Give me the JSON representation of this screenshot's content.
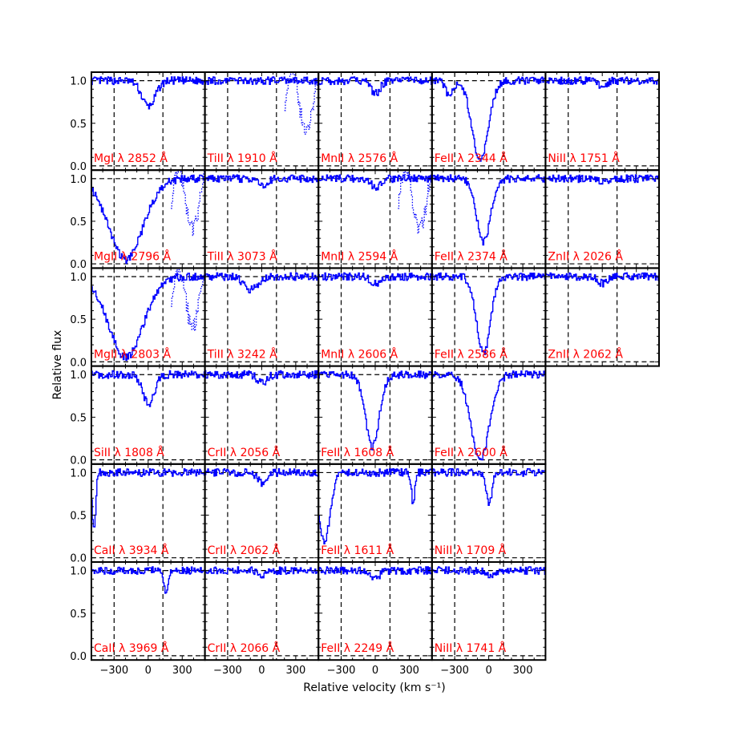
{
  "figure": {
    "ylabel": "Relative flux",
    "xlabel": "Relative velocity (km s⁻¹)"
  },
  "chart_data": {
    "type": "line",
    "xlim": [
      -500,
      500
    ],
    "ylim": [
      -0.05,
      1.1
    ],
    "x_ticks": [
      -300,
      0,
      300
    ],
    "x_tick_labels": [
      "−300",
      "0",
      "300"
    ],
    "y_ticks": [
      0.0,
      0.5,
      1.0
    ],
    "y_tick_labels": [
      "0.0",
      "0.5",
      "1.0"
    ],
    "velocity_marks": [
      -300,
      130
    ],
    "continuum_level": 1.0,
    "zero_level": 0.0,
    "colors": {
      "flux": "#0000ff",
      "label": "#ff0000",
      "guide": "#000000"
    },
    "panels": [
      {
        "row": 0,
        "col": 0,
        "label": "MgI λ 2852 Å",
        "abs": [
          {
            "v": 0,
            "w": 60,
            "d": 0.3
          }
        ]
      },
      {
        "row": 0,
        "col": 1,
        "label": "TiII λ 1910 Å",
        "abs": [],
        "blend": true
      },
      {
        "row": 0,
        "col": 2,
        "label": "MnII λ 2576 Å",
        "abs": [
          {
            "v": 0,
            "w": 40,
            "d": 0.15
          }
        ]
      },
      {
        "row": 0,
        "col": 3,
        "label": "FeII λ 2344 Å",
        "abs": [
          {
            "v": -80,
            "w": 70,
            "d": 0.95
          },
          {
            "v": -350,
            "w": 30,
            "d": 0.2
          }
        ]
      },
      {
        "row": 0,
        "col": 4,
        "label": "NiII λ 1751 Å",
        "abs": [
          {
            "v": 0,
            "w": 30,
            "d": 0.1
          }
        ]
      },
      {
        "row": 1,
        "col": 0,
        "label": "MgII λ 2796 Å",
        "abs": [
          {
            "v": -200,
            "w": 150,
            "d": 0.95
          }
        ],
        "blend": true
      },
      {
        "row": 1,
        "col": 1,
        "label": "TiII λ 3073 Å",
        "abs": [
          {
            "v": 0,
            "w": 40,
            "d": 0.08
          }
        ]
      },
      {
        "row": 1,
        "col": 2,
        "label": "MnII λ 2594 Å",
        "abs": [
          {
            "v": 0,
            "w": 40,
            "d": 0.1
          }
        ],
        "blend": true
      },
      {
        "row": 1,
        "col": 3,
        "label": "FeII λ 2374 Å",
        "abs": [
          {
            "v": -50,
            "w": 60,
            "d": 0.75
          }
        ]
      },
      {
        "row": 1,
        "col": 4,
        "label": "ZnII λ 2026 Å",
        "abs": [
          {
            "v": 0,
            "w": 40,
            "d": 0.05
          }
        ]
      },
      {
        "row": 2,
        "col": 0,
        "label": "MgII λ 2803 Å",
        "abs": [
          {
            "v": -200,
            "w": 150,
            "d": 0.95
          }
        ],
        "blend": true
      },
      {
        "row": 2,
        "col": 1,
        "label": "TiII λ 3242 Å",
        "abs": [
          {
            "v": -100,
            "w": 60,
            "d": 0.15
          }
        ]
      },
      {
        "row": 2,
        "col": 2,
        "label": "MnII λ 2606 Å",
        "abs": [
          {
            "v": 0,
            "w": 40,
            "d": 0.08
          }
        ]
      },
      {
        "row": 2,
        "col": 3,
        "label": "FeII λ 2586 Å",
        "abs": [
          {
            "v": -50,
            "w": 60,
            "d": 0.9
          }
        ]
      },
      {
        "row": 2,
        "col": 4,
        "label": "ZnII λ 2062 Å",
        "abs": [
          {
            "v": 0,
            "w": 40,
            "d": 0.08
          }
        ]
      },
      {
        "row": 3,
        "col": 0,
        "label": "SiII λ 1808 Å",
        "abs": [
          {
            "v": 0,
            "w": 50,
            "d": 0.35
          }
        ]
      },
      {
        "row": 3,
        "col": 1,
        "label": "CrII λ 2056 Å",
        "abs": [
          {
            "v": 0,
            "w": 40,
            "d": 0.1
          }
        ]
      },
      {
        "row": 3,
        "col": 2,
        "label": "FeII λ 1608 Å",
        "abs": [
          {
            "v": -30,
            "w": 60,
            "d": 0.85
          }
        ]
      },
      {
        "row": 3,
        "col": 3,
        "label": "FeII λ 2600 Å",
        "abs": [
          {
            "v": -80,
            "w": 80,
            "d": 1.0
          }
        ]
      },
      {
        "row": 4,
        "col": 0,
        "label": "CaII λ 3934 Å",
        "abs": [
          {
            "v": -480,
            "w": 15,
            "d": 0.7
          }
        ]
      },
      {
        "row": 4,
        "col": 1,
        "label": "CrII λ 2062 Å",
        "abs": [
          {
            "v": 0,
            "w": 40,
            "d": 0.12
          }
        ]
      },
      {
        "row": 4,
        "col": 2,
        "label": "FeII λ 1611 Å",
        "abs": [
          {
            "v": -450,
            "w": 50,
            "d": 0.8
          },
          {
            "v": 330,
            "w": 15,
            "d": 0.35
          }
        ]
      },
      {
        "row": 4,
        "col": 3,
        "label": "NiII λ 1709 Å",
        "abs": [
          {
            "v": 0,
            "w": 25,
            "d": 0.35
          }
        ]
      },
      {
        "row": 5,
        "col": 0,
        "label": "CaII λ 3969 Å",
        "abs": [
          {
            "v": 150,
            "w": 20,
            "d": 0.25
          }
        ]
      },
      {
        "row": 5,
        "col": 1,
        "label": "CrII λ 2066 Å",
        "abs": [
          {
            "v": 0,
            "w": 40,
            "d": 0.05
          }
        ]
      },
      {
        "row": 5,
        "col": 2,
        "label": "FeII λ 2249 Å",
        "abs": [
          {
            "v": 0,
            "w": 40,
            "d": 0.08
          }
        ]
      },
      {
        "row": 5,
        "col": 3,
        "label": "NiII λ 1741 Å",
        "abs": [
          {
            "v": 0,
            "w": 40,
            "d": 0.05
          }
        ]
      }
    ]
  }
}
